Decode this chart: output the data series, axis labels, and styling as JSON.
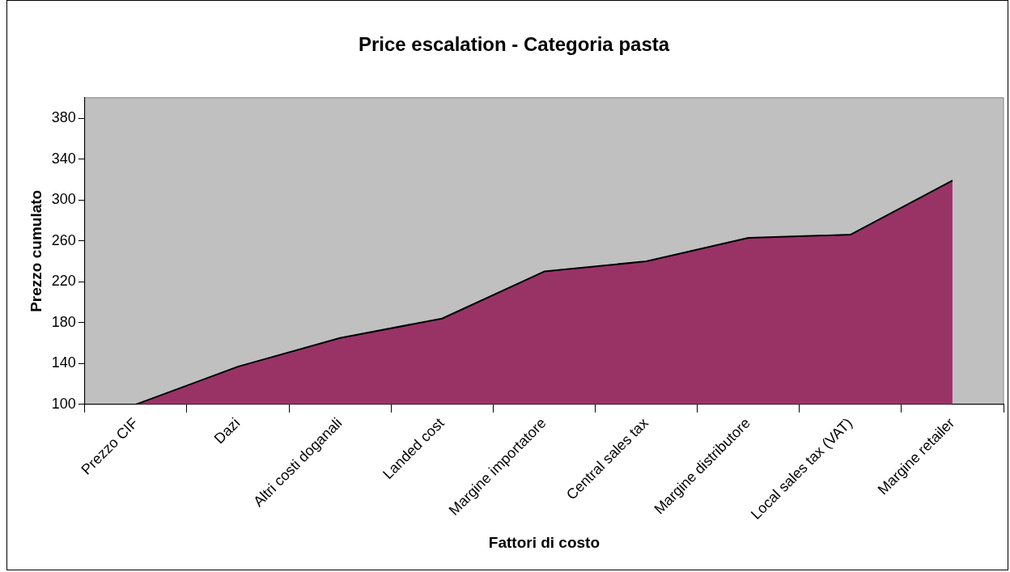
{
  "chart_data": {
    "type": "area",
    "title": "Price escalation - Categoria pasta",
    "xlabel": "Fattori di costo",
    "ylabel": "Prezzo cumulato",
    "categories": [
      "Prezzo CIF",
      "Dazi",
      "Altri costi doganali",
      "Landed cost",
      "Margine importatore",
      "Central sales tax",
      "Margine distributore",
      "Local sales tax (VAT)",
      "Margine retailer"
    ],
    "series": [
      {
        "color": "#993366",
        "values": [
          100,
          137,
          165,
          184,
          230,
          240,
          263,
          266,
          319
        ]
      }
    ],
    "ylim": [
      100,
      400
    ],
    "yticks": [
      100,
      140,
      180,
      220,
      260,
      300,
      340,
      380
    ],
    "grid": false
  }
}
